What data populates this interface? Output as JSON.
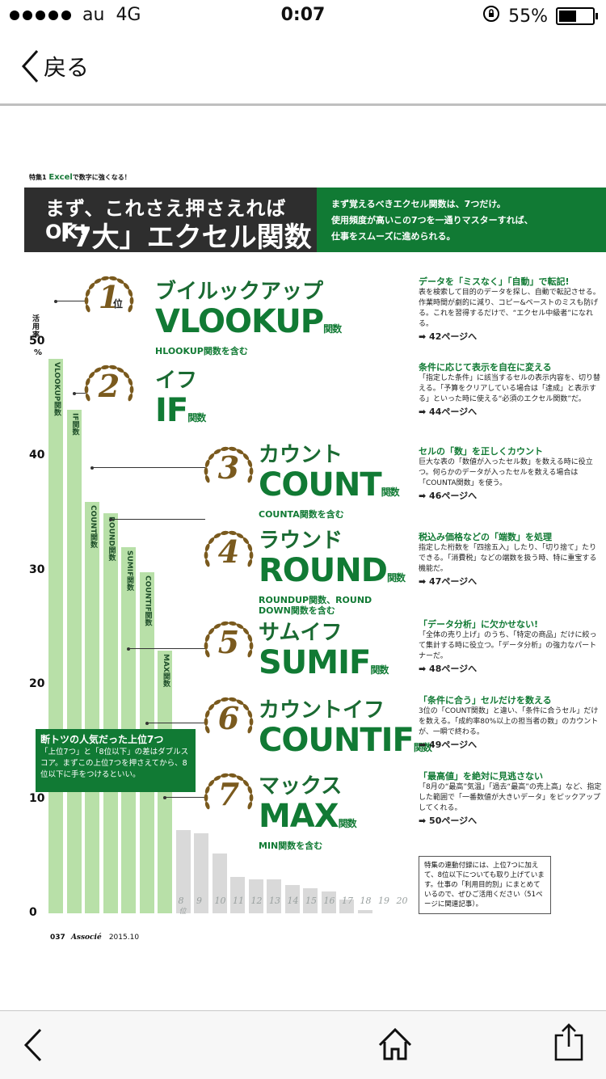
{
  "status_bar": {
    "carrier": "au",
    "network": "4G",
    "time": "0:07",
    "battery": "55%",
    "battery_level": 0.55
  },
  "nav": {
    "back_label": "戻る"
  },
  "article": {
    "breadcrumb_prefix": "特集1",
    "breadcrumb_excel": "Excel",
    "breadcrumb_rest": "で数字に強くなる！",
    "title_line1": "まず、これさえ押さえればOK!",
    "title_line2": "「7大」エクセル関数",
    "intro": [
      "まず覚えるべきエクセル関数は、7つだけ。",
      "使用頻度が高いこの7つを一通りマスターすれば、",
      "仕事をスムーズに進められる。"
    ],
    "y_axis_title": "活用率",
    "y_axis_unit": "%",
    "callout_title": "断トツの人気だった上位7つ",
    "callout_body": "「上位7つ」と「8位以下」の差はダブルスコア。まずこの上位7つを押さえてから、8位以下に手をつけるといい。",
    "footer_page": "037",
    "footer_mag": "Associé",
    "footer_date": "2015.10",
    "note": "特集の連動付録には、上位7つに加えて、8位以下についても取り上げています。仕事の「利用目的別」にまとめているので、ぜひご活用ください（51ページに関連記事）。",
    "rank_suffix": "位"
  },
  "functions": [
    {
      "rank": "1",
      "kana": "ブイルックアップ",
      "name": "VLOOKUP",
      "suffix": "関数",
      "sub": "HLOOKUP関数を含む",
      "desc_head": "データを「ミスなく」「自動」で転記!",
      "desc_body": "表を検索して目的のデータを探し、自動で転記させる。作業時間が劇的に減り、コピー&ペーストのミスも防げる。これを習得するだけで、“エクセル中級者”になれる。",
      "page": "42ページへ"
    },
    {
      "rank": "2",
      "kana": "イフ",
      "name": "IF",
      "suffix": "関数",
      "sub": "",
      "desc_head": "条件に応じて表示を自在に変える",
      "desc_body": "「指定した条件」に該当するセルの表示内容を、切り替える。「予算をクリアしている場合は「達成」と表示する」といった時に使える“必須のエクセル関数”だ。",
      "page": "44ページへ"
    },
    {
      "rank": "3",
      "kana": "カウント",
      "name": "COUNT",
      "suffix": "関数",
      "sub": "COUNTA関数を含む",
      "desc_head": "セルの「数」を正しくカウント",
      "desc_body": "巨大な表の「数値が入ったセル数」を数える時に役立つ。何らかのデータが入ったセルを数える場合は「COUNTA関数」を使う。",
      "page": "46ページへ"
    },
    {
      "rank": "4",
      "kana": "ラウンド",
      "name": "ROUND",
      "suffix": "関数",
      "sub": "ROUNDUP関数、ROUND DOWN関数を含む",
      "desc_head": "税込み価格などの「端数」を処理",
      "desc_body": "指定した桁数を「四捨五入」したり、「切り捨て」たりできる。「消費税」などの端数を扱う時、特に重宝する機能だ。",
      "page": "47ページへ"
    },
    {
      "rank": "5",
      "kana": "サムイフ",
      "name": "SUMIF",
      "suffix": "関数",
      "sub": "",
      "desc_head": "「データ分析」に欠かせない!",
      "desc_body": "「全体の売り上げ」のうち、「特定の商品」だけに絞って集計する時に役立つ。「データ分析」の強力なパートナーだ。",
      "page": "48ページへ"
    },
    {
      "rank": "6",
      "kana": "カウントイフ",
      "name": "COUNTIF",
      "suffix": "関数",
      "sub": "",
      "desc_head": "「条件に合う」セルだけを数える",
      "desc_body": "3位の「COUNT関数」と違い、「条件に合うセル」だけを数える。「成約率80%以上の担当者の数」のカウントが、一瞬で終わる。",
      "page": "49ページへ"
    },
    {
      "rank": "7",
      "kana": "マックス",
      "name": "MAX",
      "suffix": "関数",
      "sub": "MIN関数を含む",
      "desc_head": "「最高値」を絶対に見逃さない",
      "desc_body": "「8月の“最高”気温」「過去“最高”の売上高」など、指定した範囲で「一番数値が大きいデータ」をピックアップしてくれる。",
      "page": "50ページへ"
    }
  ],
  "chart_data": {
    "type": "bar",
    "ylabel": "活用率",
    "ylim": [
      0,
      50
    ],
    "ticks": [
      "0",
      "10",
      "20",
      "30",
      "40",
      "50"
    ],
    "top7_labels": [
      "VLOOKUP関数",
      "IF関数",
      "COUNT関数",
      "ROUND関数",
      "SUMIF関数",
      "COUNTIF関数",
      "MAX関数"
    ],
    "rank_labels": [
      "8",
      "9",
      "10",
      "11",
      "12",
      "13",
      "14",
      "15",
      "16",
      "17",
      "18",
      "19",
      "20"
    ],
    "values": [
      48.5,
      44,
      36,
      35,
      32,
      29.8,
      23,
      7.3,
      7,
      5.2,
      3.2,
      3,
      3,
      2.5,
      2.2,
      1.9,
      1.2,
      0.3,
      0,
      0
    ],
    "colors": {
      "top": "#b8e0a8",
      "rest": "#d9d9d9"
    }
  },
  "icons": {
    "back": "chevron-left-icon",
    "home": "home-icon",
    "share": "share-icon"
  }
}
